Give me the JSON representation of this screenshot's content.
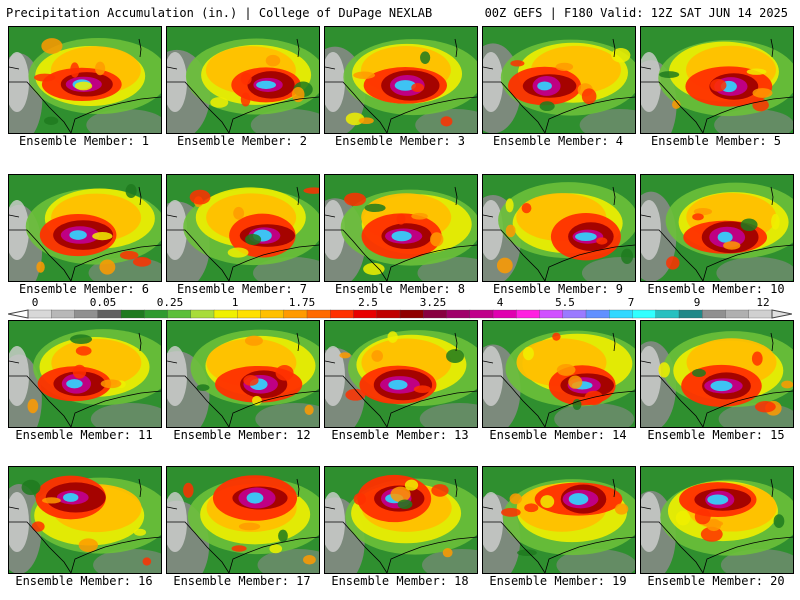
{
  "header": {
    "left_title": "Precipitation Accumulation (in.) | College of DuPage NEXLAB",
    "right_title": "00Z GEFS | F180 Valid: 12Z SAT JUN 14 2025"
  },
  "colorbar": {
    "ticks": [
      "0",
      "0.05",
      "0.25",
      "1",
      "1.75",
      "2.5",
      "3.25",
      "4",
      "5.5",
      "7",
      "9",
      "12"
    ],
    "colors": [
      "#d8d8d8",
      "#b8b8b8",
      "#909090",
      "#606060",
      "#1f7a1f",
      "#2f9a2f",
      "#5cbf3a",
      "#a8dc3a",
      "#f0f000",
      "#ffe000",
      "#ffc000",
      "#ff9a00",
      "#ff6a00",
      "#ff3000",
      "#e80000",
      "#c00000",
      "#900000",
      "#880040",
      "#a0006a",
      "#c0008a",
      "#e000b0",
      "#ff20e0",
      "#d050ff",
      "#9a7aff",
      "#6090ff",
      "#30d8ff",
      "#30ffff",
      "#28c0c0",
      "#208888",
      "#909090",
      "#b0b0b0",
      "#d0d0d0"
    ]
  },
  "members": [
    {
      "caption": "Ensemble Member: 1"
    },
    {
      "caption": "Ensemble Member: 2"
    },
    {
      "caption": "Ensemble Member: 3"
    },
    {
      "caption": "Ensemble Member: 4"
    },
    {
      "caption": "Ensemble Member: 5"
    },
    {
      "caption": "Ensemble Member: 6"
    },
    {
      "caption": "Ensemble Member: 7"
    },
    {
      "caption": "Ensemble Member: 8"
    },
    {
      "caption": "Ensemble Member: 9"
    },
    {
      "caption": "Ensemble Member: 10"
    },
    {
      "caption": "Ensemble Member: 11"
    },
    {
      "caption": "Ensemble Member: 12"
    },
    {
      "caption": "Ensemble Member: 13"
    },
    {
      "caption": "Ensemble Member: 14"
    },
    {
      "caption": "Ensemble Member: 15"
    },
    {
      "caption": "Ensemble Member: 16"
    },
    {
      "caption": "Ensemble Member: 17"
    },
    {
      "caption": "Ensemble Member: 18"
    },
    {
      "caption": "Ensemble Member: 19"
    },
    {
      "caption": "Ensemble Member: 20"
    }
  ]
}
